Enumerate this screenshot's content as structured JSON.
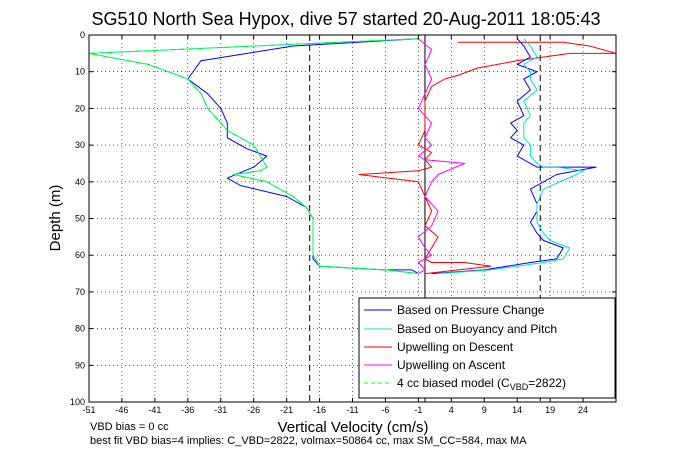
{
  "chart_data": {
    "type": "line",
    "title": "SG510 North Sea Hypox, dive 57 started 20-Aug-2011 18:05:43",
    "xlabel": "Vertical Velocity (cm/s)",
    "ylabel": "Depth (m)",
    "xlim": [
      -51,
      29
    ],
    "ylim": [
      0,
      100
    ],
    "y_reversed": true,
    "x_ticks": [
      -51,
      -46,
      -41,
      -36,
      -31,
      -26,
      -21,
      -16,
      -11,
      -6,
      -1,
      4,
      9,
      14,
      19,
      24
    ],
    "y_ticks": [
      0,
      10,
      20,
      30,
      40,
      50,
      60,
      70,
      80,
      90,
      100
    ],
    "grid": true,
    "legend_position": "bottom-right",
    "vlines": [
      {
        "x": -17.5,
        "style": "dashed"
      },
      {
        "x": 0,
        "style": "solid"
      },
      {
        "x": 17.5,
        "style": "dashed"
      }
    ],
    "series": [
      {
        "name": "Based on Pressure Change",
        "color": "#0000ff",
        "x": [
          -1,
          -20,
          -34,
          -36,
          -33,
          -31,
          -30,
          -30,
          -27,
          -24,
          -26,
          -30,
          -28,
          -21,
          -18,
          -17,
          -17,
          -17,
          -17,
          -16,
          -6,
          -2,
          -1
        ],
        "y": [
          1,
          3,
          7,
          12,
          16,
          20,
          24,
          28,
          31,
          33,
          36,
          39,
          41,
          44,
          47,
          50,
          53,
          58,
          61,
          63,
          64,
          64,
          65
        ]
      },
      {
        "name": "Based on Buoyancy and Pitch",
        "color": "#00e5d0",
        "x": [
          -1,
          -51,
          -42,
          -36,
          -34,
          -33,
          -30,
          -26,
          -25,
          -24,
          -25,
          -29,
          -24,
          -20,
          -18,
          -17,
          -17,
          -17,
          -16,
          -6,
          -1
        ],
        "y": [
          1,
          5,
          8,
          12,
          16,
          20,
          26,
          30,
          33,
          36,
          37,
          38,
          40,
          44,
          47,
          50,
          55,
          60,
          63,
          64,
          65
        ]
      },
      {
        "name": "Upwelling on Descent",
        "color": "#ff0000",
        "x": [
          5,
          21,
          25,
          27,
          29,
          22,
          14,
          8,
          5,
          3,
          1,
          0,
          0,
          0,
          -1,
          1,
          0,
          1,
          -1,
          -10,
          -1,
          0,
          1,
          0,
          2,
          1,
          0,
          1,
          6,
          10,
          0
        ],
        "y": [
          2,
          2,
          3,
          4,
          5,
          5,
          7,
          9,
          11,
          12,
          14,
          18,
          22,
          26,
          30,
          32,
          34,
          36,
          37,
          38,
          40,
          44,
          48,
          52,
          55,
          58,
          61,
          62,
          62,
          63,
          65
        ]
      },
      {
        "name": "Upwelling on Ascent",
        "color": "#ff00ff",
        "x": [
          -1,
          1,
          0,
          1,
          0,
          -1,
          1,
          0,
          1,
          -1,
          0,
          6,
          2,
          1,
          0,
          2,
          1,
          -1,
          0,
          1,
          -1,
          0,
          -1
        ],
        "y": [
          1,
          4,
          8,
          12,
          16,
          20,
          24,
          28,
          30,
          33,
          34,
          35,
          38,
          40,
          44,
          48,
          52,
          55,
          58,
          60,
          62,
          64,
          65
        ]
      },
      {
        "name": "4 cc biased model (C_VBD=2822)",
        "color": "#00ff00",
        "dashed": true,
        "x": [
          -1,
          -51,
          -42,
          -36,
          -34,
          -33,
          -30,
          -26,
          -25,
          -24,
          -25,
          -29,
          -24,
          -20,
          -18,
          -17,
          -17,
          -17,
          -16,
          -6,
          -1
        ],
        "y": [
          1,
          5,
          8,
          12,
          16,
          20,
          26,
          30,
          33,
          36,
          37,
          38,
          40,
          44,
          47,
          50,
          55,
          60,
          63,
          64,
          65
        ]
      },
      {
        "name": "",
        "color": "#0000ff",
        "x": [
          14,
          15,
          16,
          14,
          17,
          15,
          16,
          14,
          15,
          13,
          14,
          13,
          15,
          14,
          16,
          17,
          20,
          26,
          20,
          16,
          17,
          17,
          16,
          17,
          18,
          21,
          20,
          16,
          9,
          1
        ],
        "y": [
          1,
          3,
          6,
          8,
          10,
          12,
          15,
          18,
          22,
          24,
          26,
          28,
          30,
          33,
          35,
          36,
          36,
          36,
          38,
          42,
          46,
          48,
          51,
          54,
          56,
          58,
          61,
          62,
          64,
          65
        ]
      },
      {
        "name": "",
        "color": "#00e5d0",
        "x": [
          15,
          16,
          17,
          15,
          16,
          16,
          17,
          15,
          16,
          15,
          15,
          15,
          16,
          16,
          17,
          18,
          20,
          24,
          23,
          18,
          17,
          17,
          17,
          18,
          19,
          22,
          21,
          18,
          10,
          2
        ],
        "y": [
          1,
          3,
          6,
          8,
          10,
          12,
          15,
          18,
          22,
          24,
          26,
          28,
          30,
          33,
          35,
          36,
          36,
          37,
          38,
          42,
          46,
          48,
          51,
          54,
          56,
          58,
          61,
          62,
          64,
          65
        ]
      }
    ]
  },
  "legend_labels": [
    "Based on Pressure Change",
    "Based on Buoyancy and Pitch",
    "Upwelling on Descent",
    "Upwelling on Ascent",
    "4 cc biased model (C"
  ],
  "legend_sub": {
    "sub": "VBD",
    "tail": "=2822)"
  },
  "notes": {
    "line1": "VBD bias = 0 cc",
    "line2": "best fit VBD bias=4 implies: C_VBD=2822, volmax=50864 cc, max SM_CC=584, max MA"
  }
}
